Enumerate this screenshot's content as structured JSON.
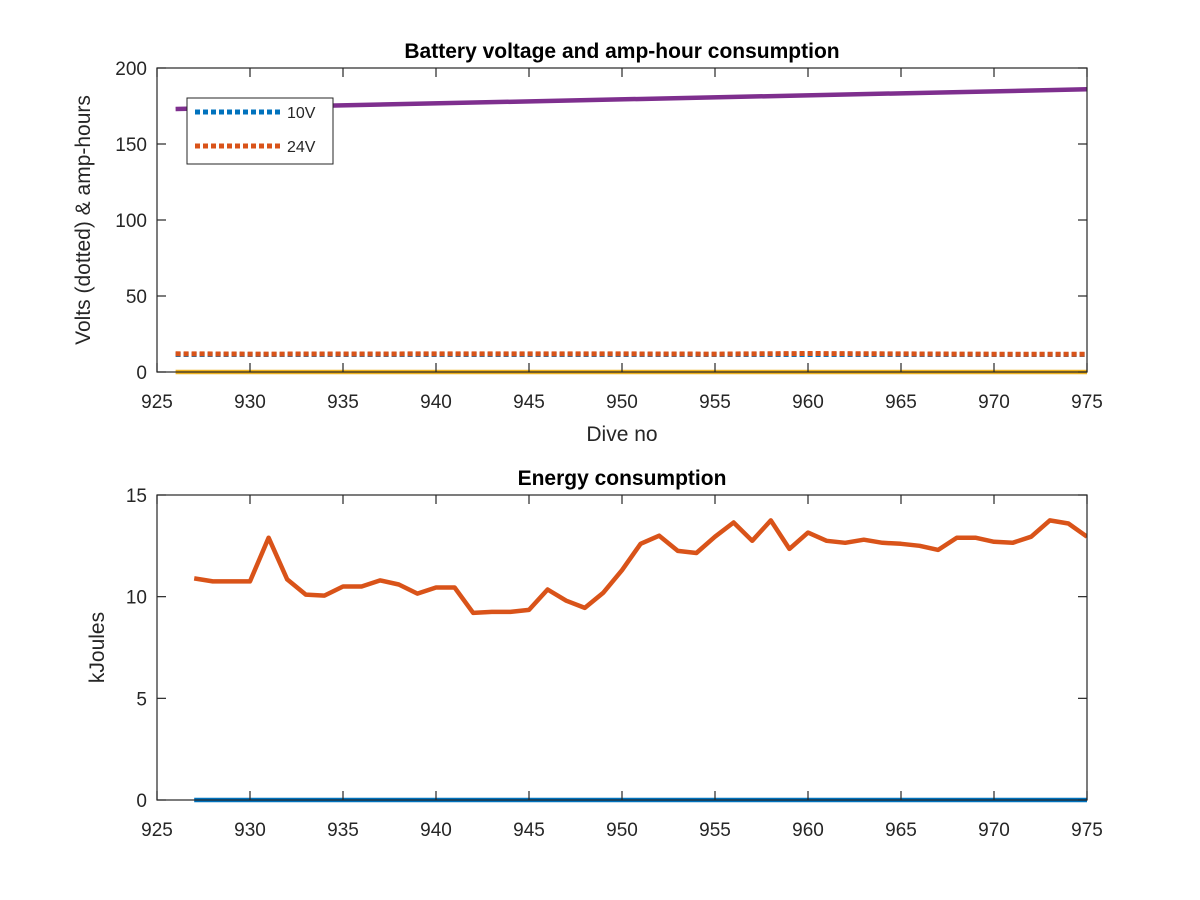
{
  "chart_data": [
    {
      "type": "line",
      "title": "Battery voltage and amp-hour consumption",
      "xlabel": "Dive no",
      "ylabel": "Volts (dotted) & amp-hours",
      "xlim": [
        925,
        975
      ],
      "ylim": [
        0,
        200
      ],
      "xticks": [
        925,
        930,
        935,
        940,
        945,
        950,
        955,
        960,
        965,
        970,
        975
      ],
      "yticks": [
        0,
        50,
        100,
        150,
        200
      ],
      "grid": false,
      "legend": "top-left",
      "series": [
        {
          "name": "10V",
          "style": "dotted",
          "color": "#0072BD",
          "x": [
            926,
            975
          ],
          "y": [
            11.5,
            11.5
          ]
        },
        {
          "name": "24V",
          "style": "dotted",
          "color": "#D95319",
          "x": [
            926,
            930,
            940,
            950,
            955,
            960,
            965,
            970,
            975
          ],
          "y": [
            12,
            11.8,
            11.9,
            11.9,
            11.8,
            12.2,
            11.9,
            11.7,
            11.7
          ]
        },
        {
          "style": "solid",
          "color": "#EDB120",
          "x": [
            926,
            975
          ],
          "y": [
            0,
            0
          ]
        },
        {
          "style": "solid",
          "color": "#7E2F8E",
          "x": [
            926,
            975
          ],
          "y": [
            173,
            186
          ]
        }
      ]
    },
    {
      "type": "line",
      "title": "Energy consumption",
      "xlabel": "",
      "ylabel": "kJoules",
      "xlim": [
        925,
        975
      ],
      "ylim": [
        0,
        15
      ],
      "xticks": [
        925,
        930,
        935,
        940,
        945,
        950,
        955,
        960,
        965,
        970,
        975
      ],
      "yticks": [
        0,
        5,
        10,
        15
      ],
      "grid": false,
      "series": [
        {
          "style": "solid",
          "color": "#0072BD",
          "x": [
            927,
            975
          ],
          "y": [
            0,
            0
          ]
        },
        {
          "style": "solid",
          "color": "#D95319",
          "x": [
            927,
            928,
            929,
            930,
            931,
            932,
            933,
            934,
            935,
            936,
            937,
            938,
            939,
            940,
            941,
            942,
            943,
            944,
            945,
            946,
            947,
            948,
            949,
            950,
            951,
            952,
            953,
            954,
            955,
            956,
            957,
            958,
            959,
            960,
            961,
            962,
            963,
            964,
            965,
            966,
            967,
            968,
            969,
            970,
            971,
            972,
            973,
            974,
            975
          ],
          "y": [
            10.9,
            10.75,
            10.75,
            10.75,
            12.9,
            10.85,
            10.1,
            10.05,
            10.5,
            10.5,
            10.8,
            10.6,
            10.15,
            10.45,
            10.45,
            9.2,
            9.25,
            9.25,
            9.35,
            10.35,
            9.8,
            9.45,
            10.2,
            11.3,
            12.6,
            13.0,
            12.25,
            12.15,
            12.95,
            13.65,
            12.75,
            13.75,
            12.35,
            13.15,
            12.75,
            12.65,
            12.8,
            12.65,
            12.6,
            12.5,
            12.3,
            12.9,
            12.9,
            12.7,
            12.65,
            12.95,
            13.75,
            13.6,
            12.95
          ]
        }
      ]
    }
  ]
}
